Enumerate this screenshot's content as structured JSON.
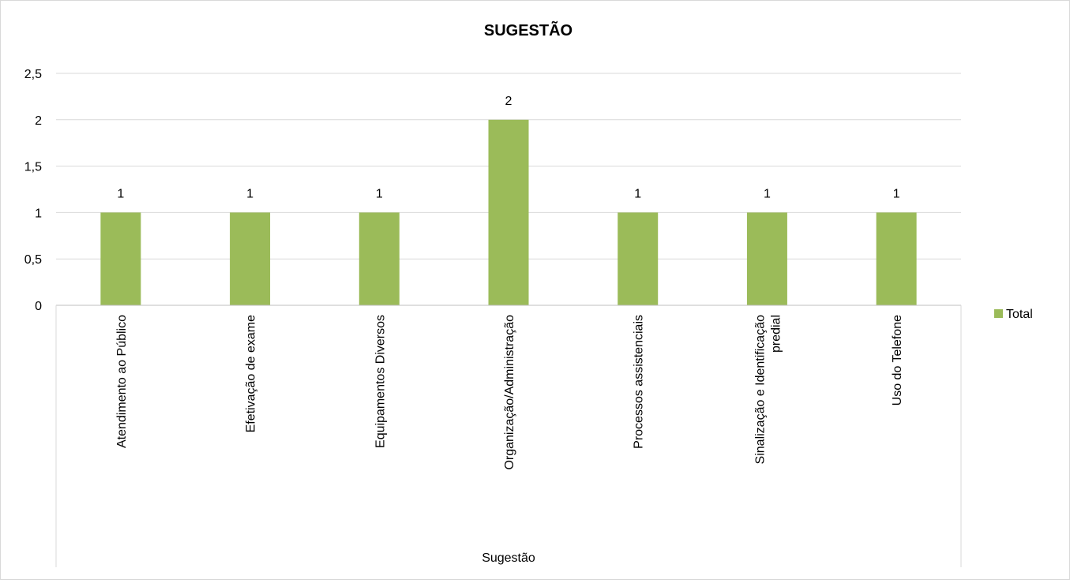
{
  "chart_data": {
    "type": "bar",
    "title": "SUGESTÃO",
    "xlabel": "Sugestão",
    "ylabel": "",
    "categories": [
      "Atendimento ao Público",
      "Efetivação de exame",
      "Equipamentos Diversos",
      "Organização/Administração",
      "Processos assistenciais",
      "Sinalização e Identificação predial",
      "Uso do Telefone"
    ],
    "series": [
      {
        "name": "Total",
        "values": [
          1,
          1,
          1,
          2,
          1,
          1,
          1
        ],
        "color": "#9bbb59"
      }
    ],
    "ylim": [
      0,
      2.5
    ],
    "yticks": [
      "0",
      "0,5",
      "1",
      "1,5",
      "2",
      "2,5"
    ],
    "data_labels": [
      "1",
      "1",
      "1",
      "2",
      "1",
      "1",
      "1"
    ],
    "grid": true,
    "legend_position": "right",
    "colors": {
      "bar": "#9bbb59",
      "grid": "#d9d9d9",
      "axis": "#bfbfbf"
    }
  }
}
